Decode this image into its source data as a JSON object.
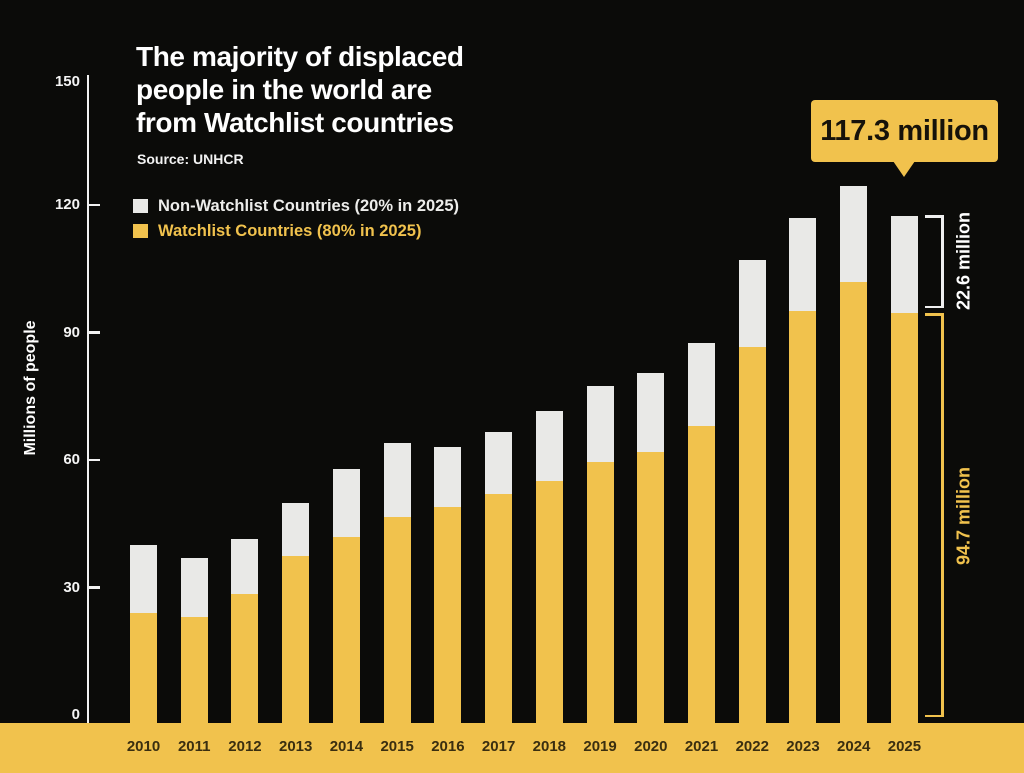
{
  "title": {
    "lines": [
      "The majority of displaced",
      "people in the world are",
      "from Watchlist countries"
    ]
  },
  "source": "Source: UNHCR",
  "legend": [
    {
      "id": "non-watchlist",
      "label": "Non-Watchlist Countries (20% in 2025)",
      "color": "#E9E9E7"
    },
    {
      "id": "watchlist",
      "label": "Watchlist Countries (80% in 2025)",
      "color": "#F1C24D"
    }
  ],
  "y_axis": {
    "label": "Millions of people",
    "ticks": [
      150,
      120,
      90,
      60,
      30,
      0
    ]
  },
  "annotations": {
    "callout_2025_total": "117.3 million",
    "non_watchlist_bracket": "22.6 million",
    "watchlist_bracket": "94.7 million"
  },
  "colors": {
    "background": "#0B0B09",
    "watchlist_yellow": "#F1C24D",
    "non_watchlist_white": "#E9E9E7",
    "axis_white": "#F2F2F2",
    "year_text_dark": "#3A2E10",
    "callout_text_dark": "#16120A"
  },
  "chart_data": {
    "type": "bar",
    "stacked": true,
    "title": "The majority of displaced people in the world are from Watchlist countries",
    "subtitle": "Source: UNHCR",
    "ylabel": "Millions of people",
    "xlabel": "",
    "ylim": [
      0,
      150
    ],
    "y_ticks": [
      0,
      30,
      60,
      90,
      120,
      150
    ],
    "grid": false,
    "legend_position": "top-left",
    "categories": [
      "2010",
      "2011",
      "2012",
      "2013",
      "2014",
      "2015",
      "2016",
      "2017",
      "2018",
      "2019",
      "2020",
      "2021",
      "2022",
      "2023",
      "2024",
      "2025"
    ],
    "series": [
      {
        "name": "Watchlist Countries (80% in 2025)",
        "color": "#F1C24D",
        "values": [
          24,
          23,
          28.5,
          37.5,
          42,
          46.5,
          49,
          52,
          55,
          59.5,
          62,
          68,
          86.5,
          95,
          102,
          94.7
        ]
      },
      {
        "name": "Non-Watchlist Countries (20% in 2025)",
        "color": "#E9E9E7",
        "values": [
          16,
          14,
          13,
          12.5,
          16,
          17.5,
          14,
          14.5,
          16.5,
          18,
          18.5,
          19.5,
          20.5,
          22,
          22.5,
          22.6
        ]
      }
    ],
    "totals": [
      40,
      37,
      41.5,
      50,
      58,
      64,
      63,
      66.5,
      71.5,
      77.5,
      80.5,
      87.5,
      107,
      117,
      124.5,
      117.3
    ],
    "annotations": [
      {
        "target": "2025 total",
        "text": "117.3 million",
        "style": "yellow callout box with pointer"
      },
      {
        "target": "2025 non-watchlist segment",
        "text": "22.6 million",
        "style": "white bracket, rotated text"
      },
      {
        "target": "2025 watchlist segment",
        "text": "94.7 million",
        "style": "yellow bracket, rotated text"
      }
    ]
  }
}
